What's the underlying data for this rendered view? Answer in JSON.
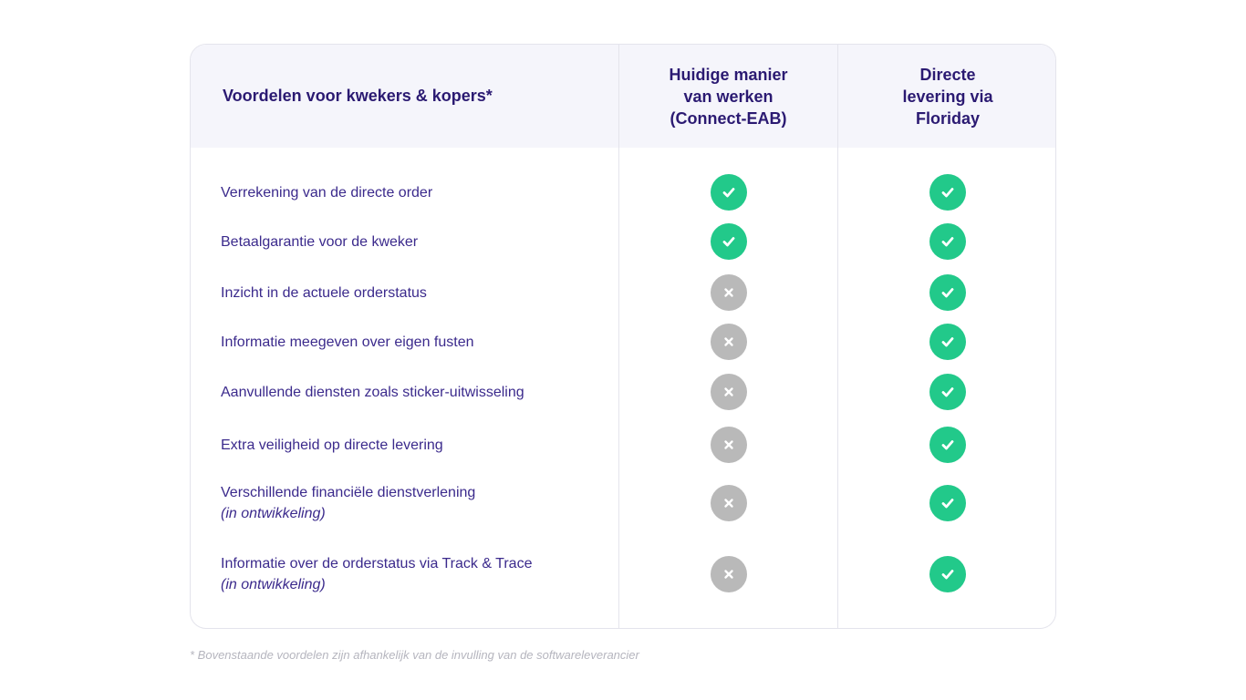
{
  "header": {
    "feature_title": "Voordelen voor kwekers & kopers*",
    "col1_title": "Huidige manier\nvan werken\n(Connect-EAB)",
    "col2_title": "Directe\nlevering via\nFloriday"
  },
  "rows": [
    {
      "label": "Verrekening van de directe order",
      "sub": "",
      "col1": "check",
      "col2": "check"
    },
    {
      "label": "Betaalgarantie voor de kweker",
      "sub": "",
      "col1": "check",
      "col2": "check"
    },
    {
      "label": "Inzicht in de actuele orderstatus",
      "sub": "",
      "col1": "cross",
      "col2": "check"
    },
    {
      "label": "Informatie meegeven over eigen fusten",
      "sub": "",
      "col1": "cross",
      "col2": "check"
    },
    {
      "label": "Aanvullende diensten zoals sticker-uitwisseling",
      "sub": "",
      "col1": "cross",
      "col2": "check"
    },
    {
      "label": "Extra veiligheid op directe levering",
      "sub": "",
      "col1": "cross",
      "col2": "check"
    },
    {
      "label": "Verschillende financiële dienstverlening",
      "sub": "(in ontwikkeling)",
      "col1": "cross",
      "col2": "check"
    },
    {
      "label": "Informatie over de orderstatus via Track & Trace",
      "sub": "(in ontwikkeling)",
      "col1": "cross",
      "col2": "check"
    }
  ],
  "icons": {
    "check": "check-icon",
    "cross": "cross-icon"
  },
  "colors": {
    "check_bg": "#22c98a",
    "cross_bg": "#b9b9b9",
    "text": "#2b1a72"
  },
  "footnote": "* Bovenstaande voordelen zijn afhankelijk van de invulling van de softwareleverancier"
}
